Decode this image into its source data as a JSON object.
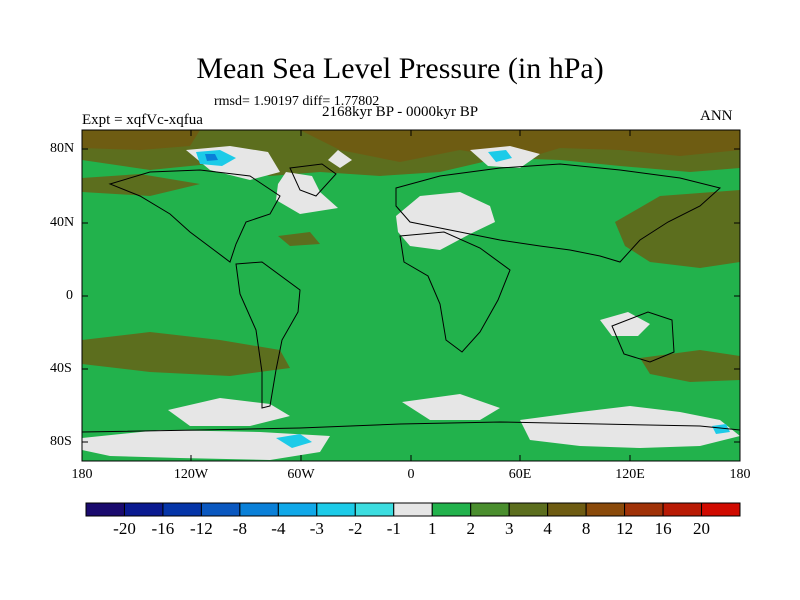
{
  "map": {
    "title": "Mean Sea Level Pressure (in hPa)",
    "stats": "rmsd= 1.90197 diff= 1.77802",
    "period": "2168kyr BP - 0000kyr BP",
    "experiment": "Expt = xqfVc-xqfua",
    "season": "ANN",
    "lat_labels": [
      "80N",
      "40N",
      "0",
      "40S",
      "80S"
    ],
    "lon_labels": [
      "180",
      "120W",
      "60W",
      "0",
      "60E",
      "120E",
      "180"
    ]
  },
  "colorbar": {
    "colors": [
      "#1a0a6e",
      "#0a1a90",
      "#0535a8",
      "#0a58c0",
      "#0a80d8",
      "#10a8e8",
      "#1ccbe8",
      "#3cdde0",
      "#e6e6e6",
      "#22b24c",
      "#4a8e2e",
      "#5c6e1e",
      "#6e5c12",
      "#8a4a0a",
      "#a03208",
      "#b81a04",
      "#d00a00"
    ],
    "labels": [
      "-20",
      "-16",
      "-12",
      "-8",
      "-4",
      "-3",
      "-2",
      "-1",
      "1",
      "2",
      "3",
      "4",
      "8",
      "12",
      "16",
      "20"
    ]
  },
  "palette": {
    "green": "#22b24c",
    "olive": "#5c6e1e",
    "brown": "#6e5c12",
    "white": "#e6e6e6",
    "cyan": "#1ccbe8",
    "blue": "#0a80d8"
  }
}
